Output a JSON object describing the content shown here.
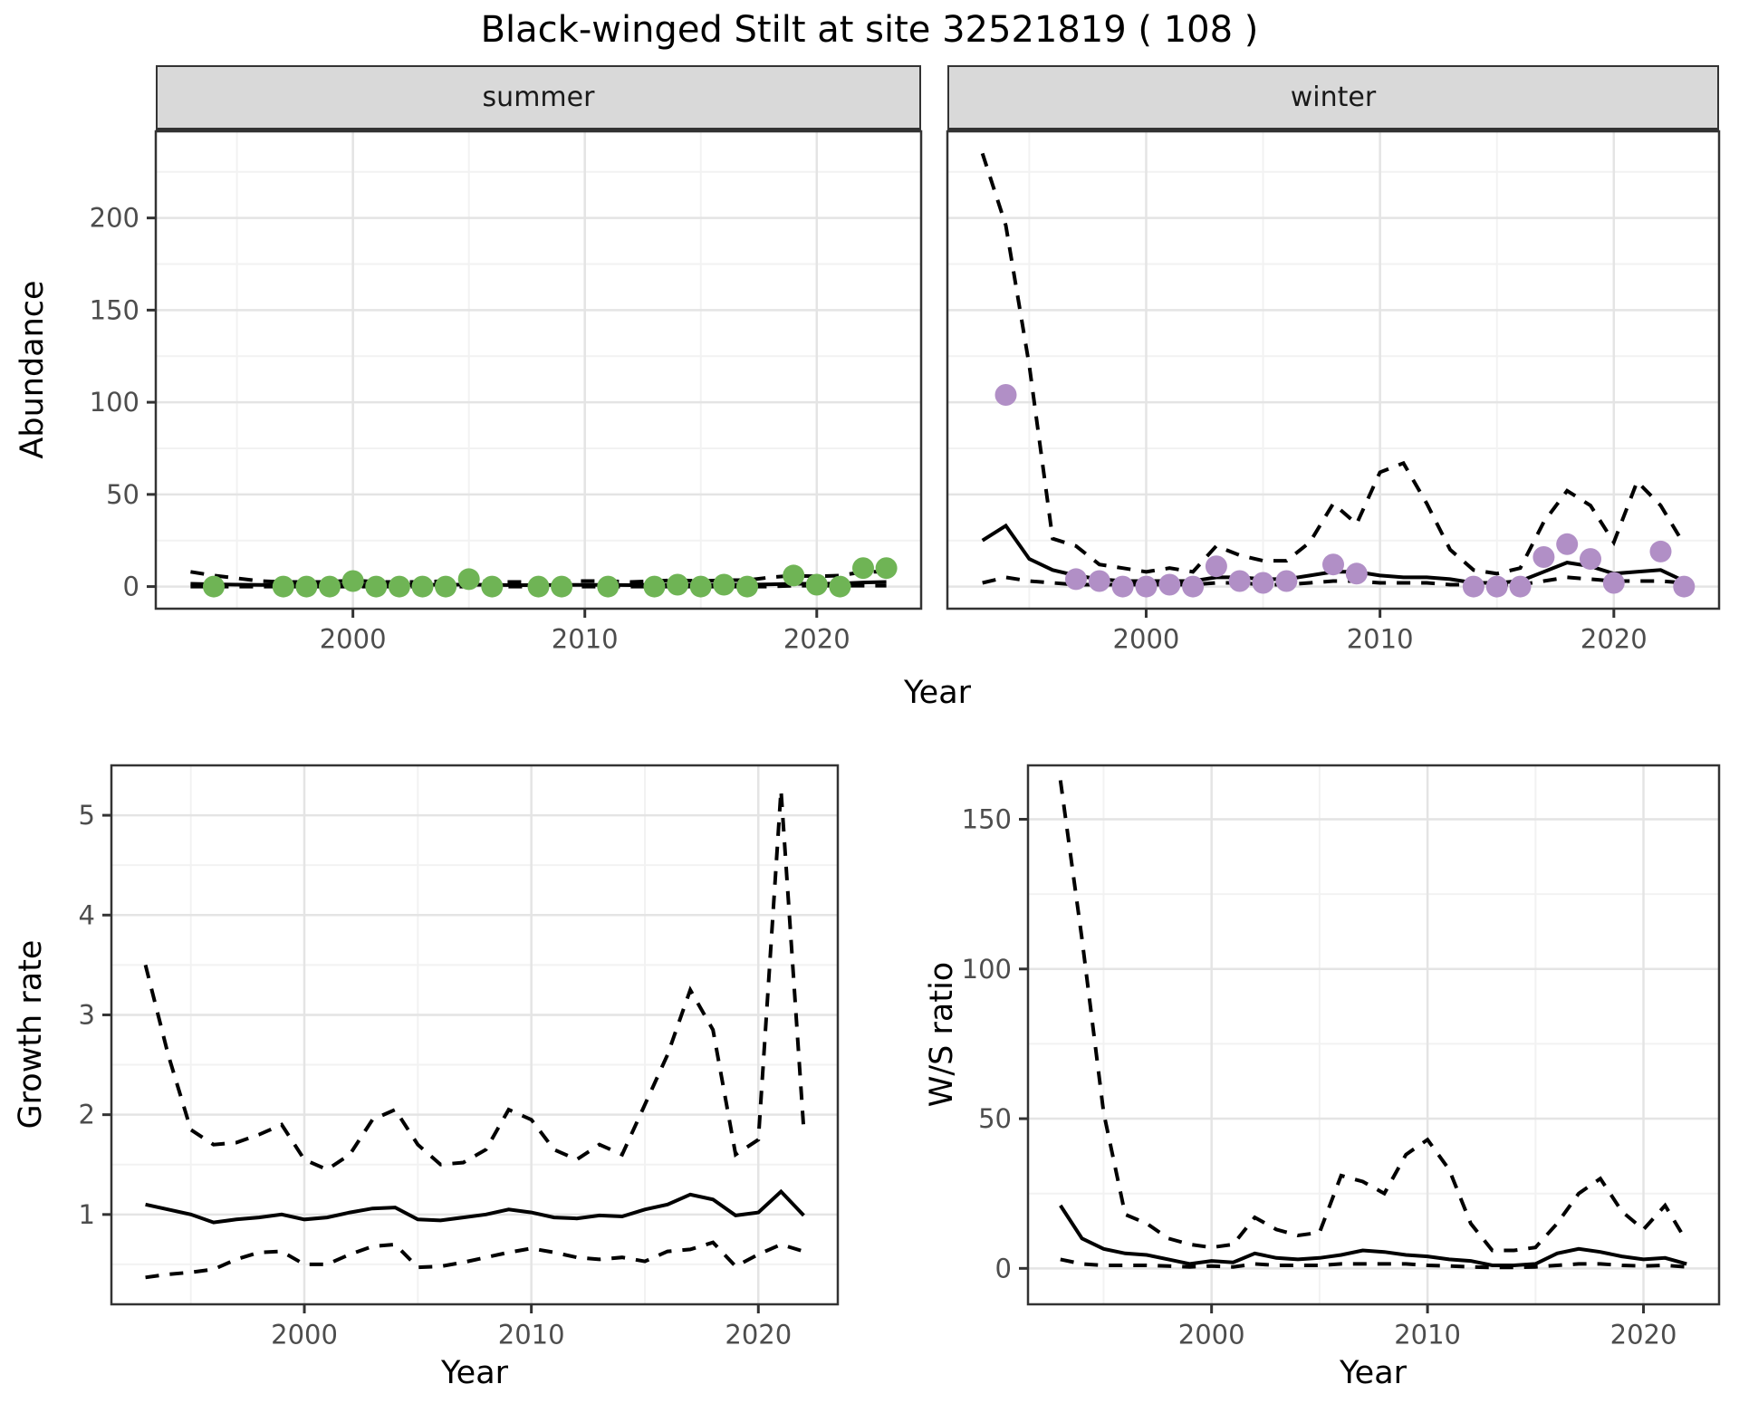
{
  "title": "Black-winged Stilt at site 32521819 ( 108 )",
  "palette": {
    "summer_point": "#6fb455",
    "winter_point": "#b18fc6",
    "line": "#000000",
    "strip_bg": "#d9d9d9",
    "panel_border": "#333333",
    "grid_major": "#e4e4e4",
    "grid_minor": "#f2f2f2",
    "tick_label": "#4d4d4d"
  },
  "chart_data": [
    {
      "id": "abundance-summer",
      "type": "line",
      "facet": "summer",
      "title": "",
      "xlabel": "Year",
      "ylabel": "Abundance",
      "xlim": [
        1991.5,
        2024.5
      ],
      "ylim": [
        -12,
        247
      ],
      "x_ticks": [
        2000,
        2010,
        2020
      ],
      "x_minor": [
        1995,
        2005,
        2015
      ],
      "y_ticks": [
        0,
        50,
        100,
        150,
        200
      ],
      "y_minor": [
        25,
        75,
        125,
        175,
        225
      ],
      "years": [
        1993,
        1994,
        1995,
        1996,
        1997,
        1998,
        1999,
        2000,
        2001,
        2002,
        2003,
        2004,
        2005,
        2006,
        2007,
        2008,
        2009,
        2010,
        2011,
        2012,
        2013,
        2014,
        2015,
        2016,
        2017,
        2018,
        2019,
        2020,
        2021,
        2022,
        2023
      ],
      "series": [
        {
          "name": "model-fit",
          "style": "solid",
          "values": [
            1.5,
            1.2,
            1.0,
            0.9,
            0.8,
            0.8,
            0.8,
            1.0,
            0.8,
            0.8,
            0.9,
            1.0,
            1.0,
            0.9,
            0.8,
            0.8,
            0.9,
            0.9,
            0.9,
            0.8,
            0.9,
            1.0,
            0.9,
            1.0,
            1.0,
            1.2,
            1.5,
            1.5,
            1.6,
            2.2,
            2.5
          ]
        },
        {
          "name": "upper-ci",
          "style": "dashed",
          "values": [
            8,
            6,
            4.5,
            3,
            2.5,
            2.5,
            2.5,
            3.5,
            2.5,
            2.5,
            2.5,
            3,
            3.5,
            2.5,
            2.5,
            2.5,
            3,
            3,
            3,
            2.5,
            3,
            3.5,
            3,
            3.5,
            3.5,
            5,
            6,
            5.5,
            6,
            8,
            8
          ]
        },
        {
          "name": "lower-ci",
          "style": "dashed",
          "values": [
            0,
            0,
            0,
            0,
            0,
            0,
            0,
            0,
            0,
            0,
            0,
            0,
            0,
            0,
            0,
            0,
            0,
            0,
            0,
            0,
            0,
            0,
            0,
            0,
            0,
            0,
            0.5,
            0.5,
            0.5,
            0.5,
            0.5
          ]
        }
      ],
      "points": {
        "name": "observed-counts",
        "color": "#6fb455",
        "x": [
          1994,
          1997,
          1998,
          1999,
          2000,
          2001,
          2002,
          2003,
          2004,
          2005,
          2006,
          2008,
          2009,
          2011,
          2013,
          2014,
          2015,
          2016,
          2017,
          2019,
          2020,
          2021,
          2022,
          2023
        ],
        "y": [
          0,
          0,
          0,
          0,
          3,
          0,
          0,
          0,
          0,
          4,
          0,
          0,
          0,
          0,
          0,
          1,
          0,
          1,
          0,
          6,
          1,
          0,
          10,
          10
        ]
      }
    },
    {
      "id": "abundance-winter",
      "type": "line",
      "facet": "winter",
      "title": "",
      "xlabel": "Year",
      "ylabel": "Abundance",
      "xlim": [
        1991.5,
        2024.5
      ],
      "ylim": [
        -12,
        247
      ],
      "x_ticks": [
        2000,
        2010,
        2020
      ],
      "x_minor": [
        1995,
        2005,
        2015
      ],
      "y_ticks": [
        0,
        50,
        100,
        150,
        200
      ],
      "y_minor": [
        25,
        75,
        125,
        175,
        225
      ],
      "years": [
        1993,
        1994,
        1995,
        1996,
        1997,
        1998,
        1999,
        2000,
        2001,
        2002,
        2003,
        2004,
        2005,
        2006,
        2007,
        2008,
        2009,
        2010,
        2011,
        2012,
        2013,
        2014,
        2015,
        2016,
        2017,
        2018,
        2019,
        2020,
        2021,
        2022,
        2023
      ],
      "series": [
        {
          "name": "model-fit",
          "style": "solid",
          "values": [
            25,
            33,
            15,
            9,
            6,
            4,
            3,
            3,
            3,
            3,
            5,
            5,
            4,
            4,
            6,
            8,
            8,
            6,
            5,
            5,
            4,
            2,
            2,
            3,
            8,
            13,
            11,
            7,
            8,
            9,
            3
          ]
        },
        {
          "name": "upper-ci",
          "style": "dashed",
          "values": [
            235,
            196,
            120,
            26,
            22,
            12,
            10,
            8,
            10,
            8,
            22,
            17,
            14,
            14,
            24,
            45,
            34,
            62,
            67,
            45,
            20,
            9,
            7,
            10,
            35,
            52,
            44,
            24,
            57,
            44,
            23
          ]
        },
        {
          "name": "lower-ci",
          "style": "dashed",
          "values": [
            2,
            5,
            3,
            2,
            1,
            1,
            1,
            1,
            1,
            1,
            2,
            2,
            1,
            1,
            2,
            3,
            3,
            2,
            2,
            2,
            1,
            1,
            1,
            1,
            3,
            5,
            4,
            3,
            3,
            3,
            2
          ]
        }
      ],
      "points": {
        "name": "observed-counts",
        "color": "#b18fc6",
        "x": [
          1994,
          1997,
          1998,
          1999,
          2000,
          2001,
          2002,
          2003,
          2004,
          2005,
          2006,
          2008,
          2009,
          2014,
          2015,
          2016,
          2017,
          2018,
          2019,
          2020,
          2022,
          2023
        ],
        "y": [
          104,
          4,
          3,
          0,
          0,
          1,
          0,
          11,
          3,
          2,
          3,
          12,
          7,
          0,
          0,
          0,
          16,
          23,
          15,
          2,
          19,
          0
        ]
      }
    },
    {
      "id": "growth-rate",
      "type": "line",
      "facet": "",
      "title": "",
      "xlabel": "Year",
      "ylabel": "Growth rate",
      "xlim": [
        1991.5,
        2023.5
      ],
      "ylim": [
        0.1,
        5.5
      ],
      "x_ticks": [
        2000,
        2010,
        2020
      ],
      "x_minor": [
        1995,
        2005,
        2015
      ],
      "y_ticks": [
        1,
        2,
        3,
        4,
        5
      ],
      "y_minor": [
        0.5,
        1.5,
        2.5,
        3.5,
        4.5
      ],
      "years": [
        1993,
        1994,
        1995,
        1996,
        1997,
        1998,
        1999,
        2000,
        2001,
        2002,
        2003,
        2004,
        2005,
        2006,
        2007,
        2008,
        2009,
        2010,
        2011,
        2012,
        2013,
        2014,
        2015,
        2016,
        2017,
        2018,
        2019,
        2020,
        2021,
        2022
      ],
      "series": [
        {
          "name": "model-fit",
          "style": "solid",
          "values": [
            1.1,
            1.05,
            1.0,
            0.92,
            0.95,
            0.97,
            1.0,
            0.95,
            0.97,
            1.02,
            1.06,
            1.07,
            0.95,
            0.94,
            0.97,
            1.0,
            1.05,
            1.02,
            0.97,
            0.96,
            0.99,
            0.98,
            1.05,
            1.1,
            1.2,
            1.15,
            0.99,
            1.02,
            1.23,
            0.99
          ]
        },
        {
          "name": "upper-ci",
          "style": "dashed",
          "values": [
            3.5,
            2.6,
            1.85,
            1.7,
            1.72,
            1.8,
            1.9,
            1.55,
            1.45,
            1.6,
            1.95,
            2.05,
            1.7,
            1.5,
            1.52,
            1.65,
            2.05,
            1.95,
            1.65,
            1.55,
            1.7,
            1.6,
            2.1,
            2.6,
            3.25,
            2.85,
            1.6,
            1.75,
            5.25,
            1.85
          ]
        },
        {
          "name": "lower-ci",
          "style": "dashed",
          "values": [
            0.37,
            0.4,
            0.42,
            0.45,
            0.55,
            0.62,
            0.63,
            0.5,
            0.5,
            0.6,
            0.68,
            0.7,
            0.47,
            0.48,
            0.52,
            0.57,
            0.62,
            0.66,
            0.62,
            0.57,
            0.55,
            0.57,
            0.53,
            0.63,
            0.65,
            0.72,
            0.48,
            0.6,
            0.7,
            0.63
          ]
        }
      ],
      "points": null
    },
    {
      "id": "ws-ratio",
      "type": "line",
      "facet": "",
      "title": "",
      "xlabel": "Year",
      "ylabel": "W/S ratio",
      "xlim": [
        1991.5,
        2023.5
      ],
      "ylim": [
        -12,
        168
      ],
      "x_ticks": [
        2000,
        2010,
        2020
      ],
      "x_minor": [
        1995,
        2005,
        2015
      ],
      "y_ticks": [
        0,
        50,
        100,
        150
      ],
      "y_minor": [
        25,
        75,
        125
      ],
      "years": [
        1993,
        1994,
        1995,
        1996,
        1997,
        1998,
        1999,
        2000,
        2001,
        2002,
        2003,
        2004,
        2005,
        2006,
        2007,
        2008,
        2009,
        2010,
        2011,
        2012,
        2013,
        2014,
        2015,
        2016,
        2017,
        2018,
        2019,
        2020,
        2021,
        2022
      ],
      "series": [
        {
          "name": "model-fit",
          "style": "solid",
          "values": [
            21,
            10,
            6.5,
            5,
            4.5,
            3,
            1.5,
            2.5,
            2,
            5,
            3.5,
            3,
            3.5,
            4.5,
            6,
            5.5,
            4.5,
            4,
            3,
            2.5,
            1,
            1,
            1.5,
            5,
            6.5,
            5.5,
            4,
            3,
            3.5,
            1.5
          ]
        },
        {
          "name": "upper-ci",
          "style": "dashed",
          "values": [
            163,
            110,
            52,
            18,
            15,
            10,
            8,
            7,
            8,
            17,
            13,
            11,
            12,
            31,
            29,
            25,
            38,
            43,
            33,
            15,
            6,
            6,
            7,
            15,
            25,
            30,
            19,
            13,
            21,
            9
          ]
        },
        {
          "name": "lower-ci",
          "style": "dashed",
          "values": [
            3,
            1.5,
            1,
            1,
            1,
            0.8,
            0.5,
            0.8,
            0.5,
            1.5,
            1,
            1,
            1,
            1.5,
            1.5,
            1.5,
            1.5,
            1,
            0.8,
            0.5,
            0.3,
            0.3,
            0.5,
            1,
            1.5,
            1.5,
            1,
            0.8,
            1,
            0.5
          ]
        }
      ],
      "points": null
    }
  ]
}
